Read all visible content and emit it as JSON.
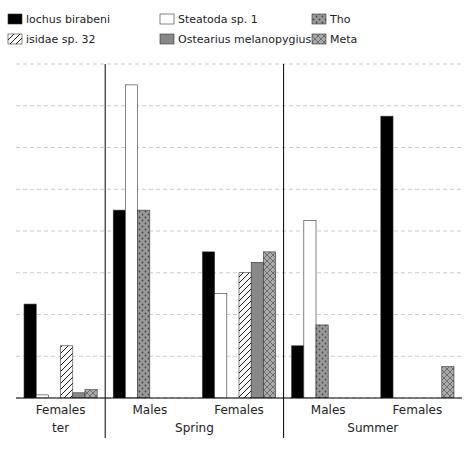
{
  "chart_data": {
    "type": "bar",
    "categories": [
      "Females",
      "Males",
      "Females",
      "Males",
      "Females"
    ],
    "annotations": [
      "ter",
      "Spring",
      "Summer"
    ],
    "series": [
      {
        "name": "lochus birabeni",
        "color": "#000000",
        "values": [
          9,
          18,
          14,
          5,
          27
        ]
      },
      {
        "name": "Steatoda sp. 1",
        "color": "#ffffff",
        "values": [
          0.3,
          30,
          10,
          17,
          0
        ]
      },
      {
        "name": "Tho",
        "color": "#999999",
        "values": [
          0,
          18,
          0,
          7,
          0
        ]
      },
      {
        "name": "isidae sp. 32",
        "color": "#ffffff",
        "values": [
          5,
          0,
          12,
          0,
          0
        ]
      },
      {
        "name": "Ostearius melanopygius",
        "color": "#888888",
        "values": [
          0.5,
          0,
          13,
          0,
          0
        ]
      },
      {
        "name": "Meta",
        "color": "#aaaaaa",
        "values": [
          0.8,
          0,
          14,
          0,
          3
        ]
      }
    ],
    "ylim": [
      0,
      32
    ],
    "yticks": [
      0,
      4,
      8,
      12,
      16,
      20,
      24,
      28,
      32
    ],
    "grid": true,
    "tick_labels": "x",
    "legend": "top"
  }
}
